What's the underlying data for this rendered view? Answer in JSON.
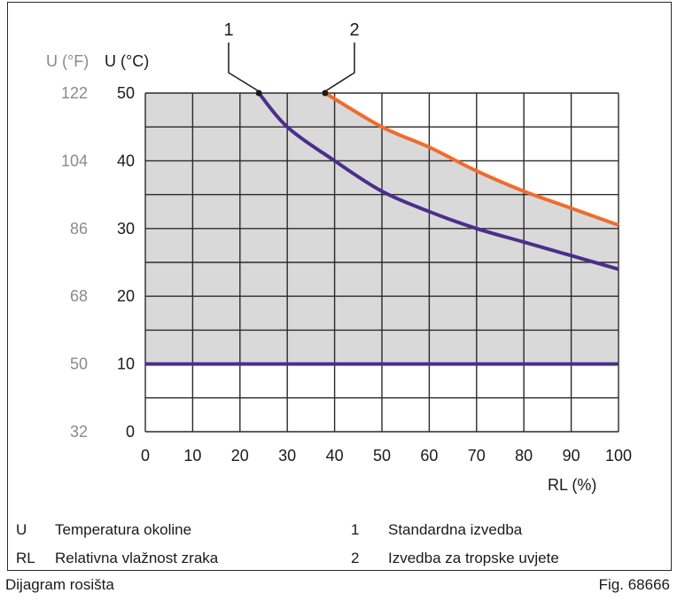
{
  "chart_data": {
    "type": "line",
    "y_axis_f_label": "U (°F)",
    "y_axis_c_label": "U (°C)",
    "xlabel": "RL (%)",
    "xlim": [
      0,
      100
    ],
    "ylim": [
      0,
      50
    ],
    "x_ticks": [
      "0",
      "10",
      "20",
      "30",
      "40",
      "50",
      "60",
      "70",
      "80",
      "90",
      "100"
    ],
    "y_ticks_c": [
      "0",
      "10",
      "20",
      "30",
      "40",
      "50"
    ],
    "y_ticks_f": [
      "32",
      "50",
      "68",
      "86",
      "104",
      "122"
    ],
    "grid": true,
    "shaded_region": {
      "y_min": 10,
      "upper_bound": "series 2",
      "fill": "#d9d9d9"
    },
    "horizontal_line": {
      "y": 10,
      "color": "#4b2e8c"
    },
    "series": [
      {
        "name": "1",
        "color": "#4b2e8c",
        "x": [
          24,
          30,
          40,
          50,
          60,
          70,
          80,
          90,
          100
        ],
        "y": [
          50,
          45,
          40,
          35.5,
          32.5,
          30,
          28,
          26,
          24
        ]
      },
      {
        "name": "2",
        "color": "#f26b2a",
        "x": [
          38,
          50,
          60,
          70,
          80,
          90,
          100
        ],
        "y": [
          50,
          45,
          42,
          38.5,
          35.5,
          33,
          30.5
        ]
      }
    ]
  },
  "legend": [
    {
      "key": "U",
      "text": "Temperatura okoline"
    },
    {
      "key": "RL",
      "text": "Relativna vlažnost zraka"
    },
    {
      "key": "1",
      "text": "Standardna izvedba"
    },
    {
      "key": "2",
      "text": "Izvedba za tropske uvjete"
    }
  ],
  "caption": "Dijagram rosišta",
  "figure_id": "Fig. 68666"
}
